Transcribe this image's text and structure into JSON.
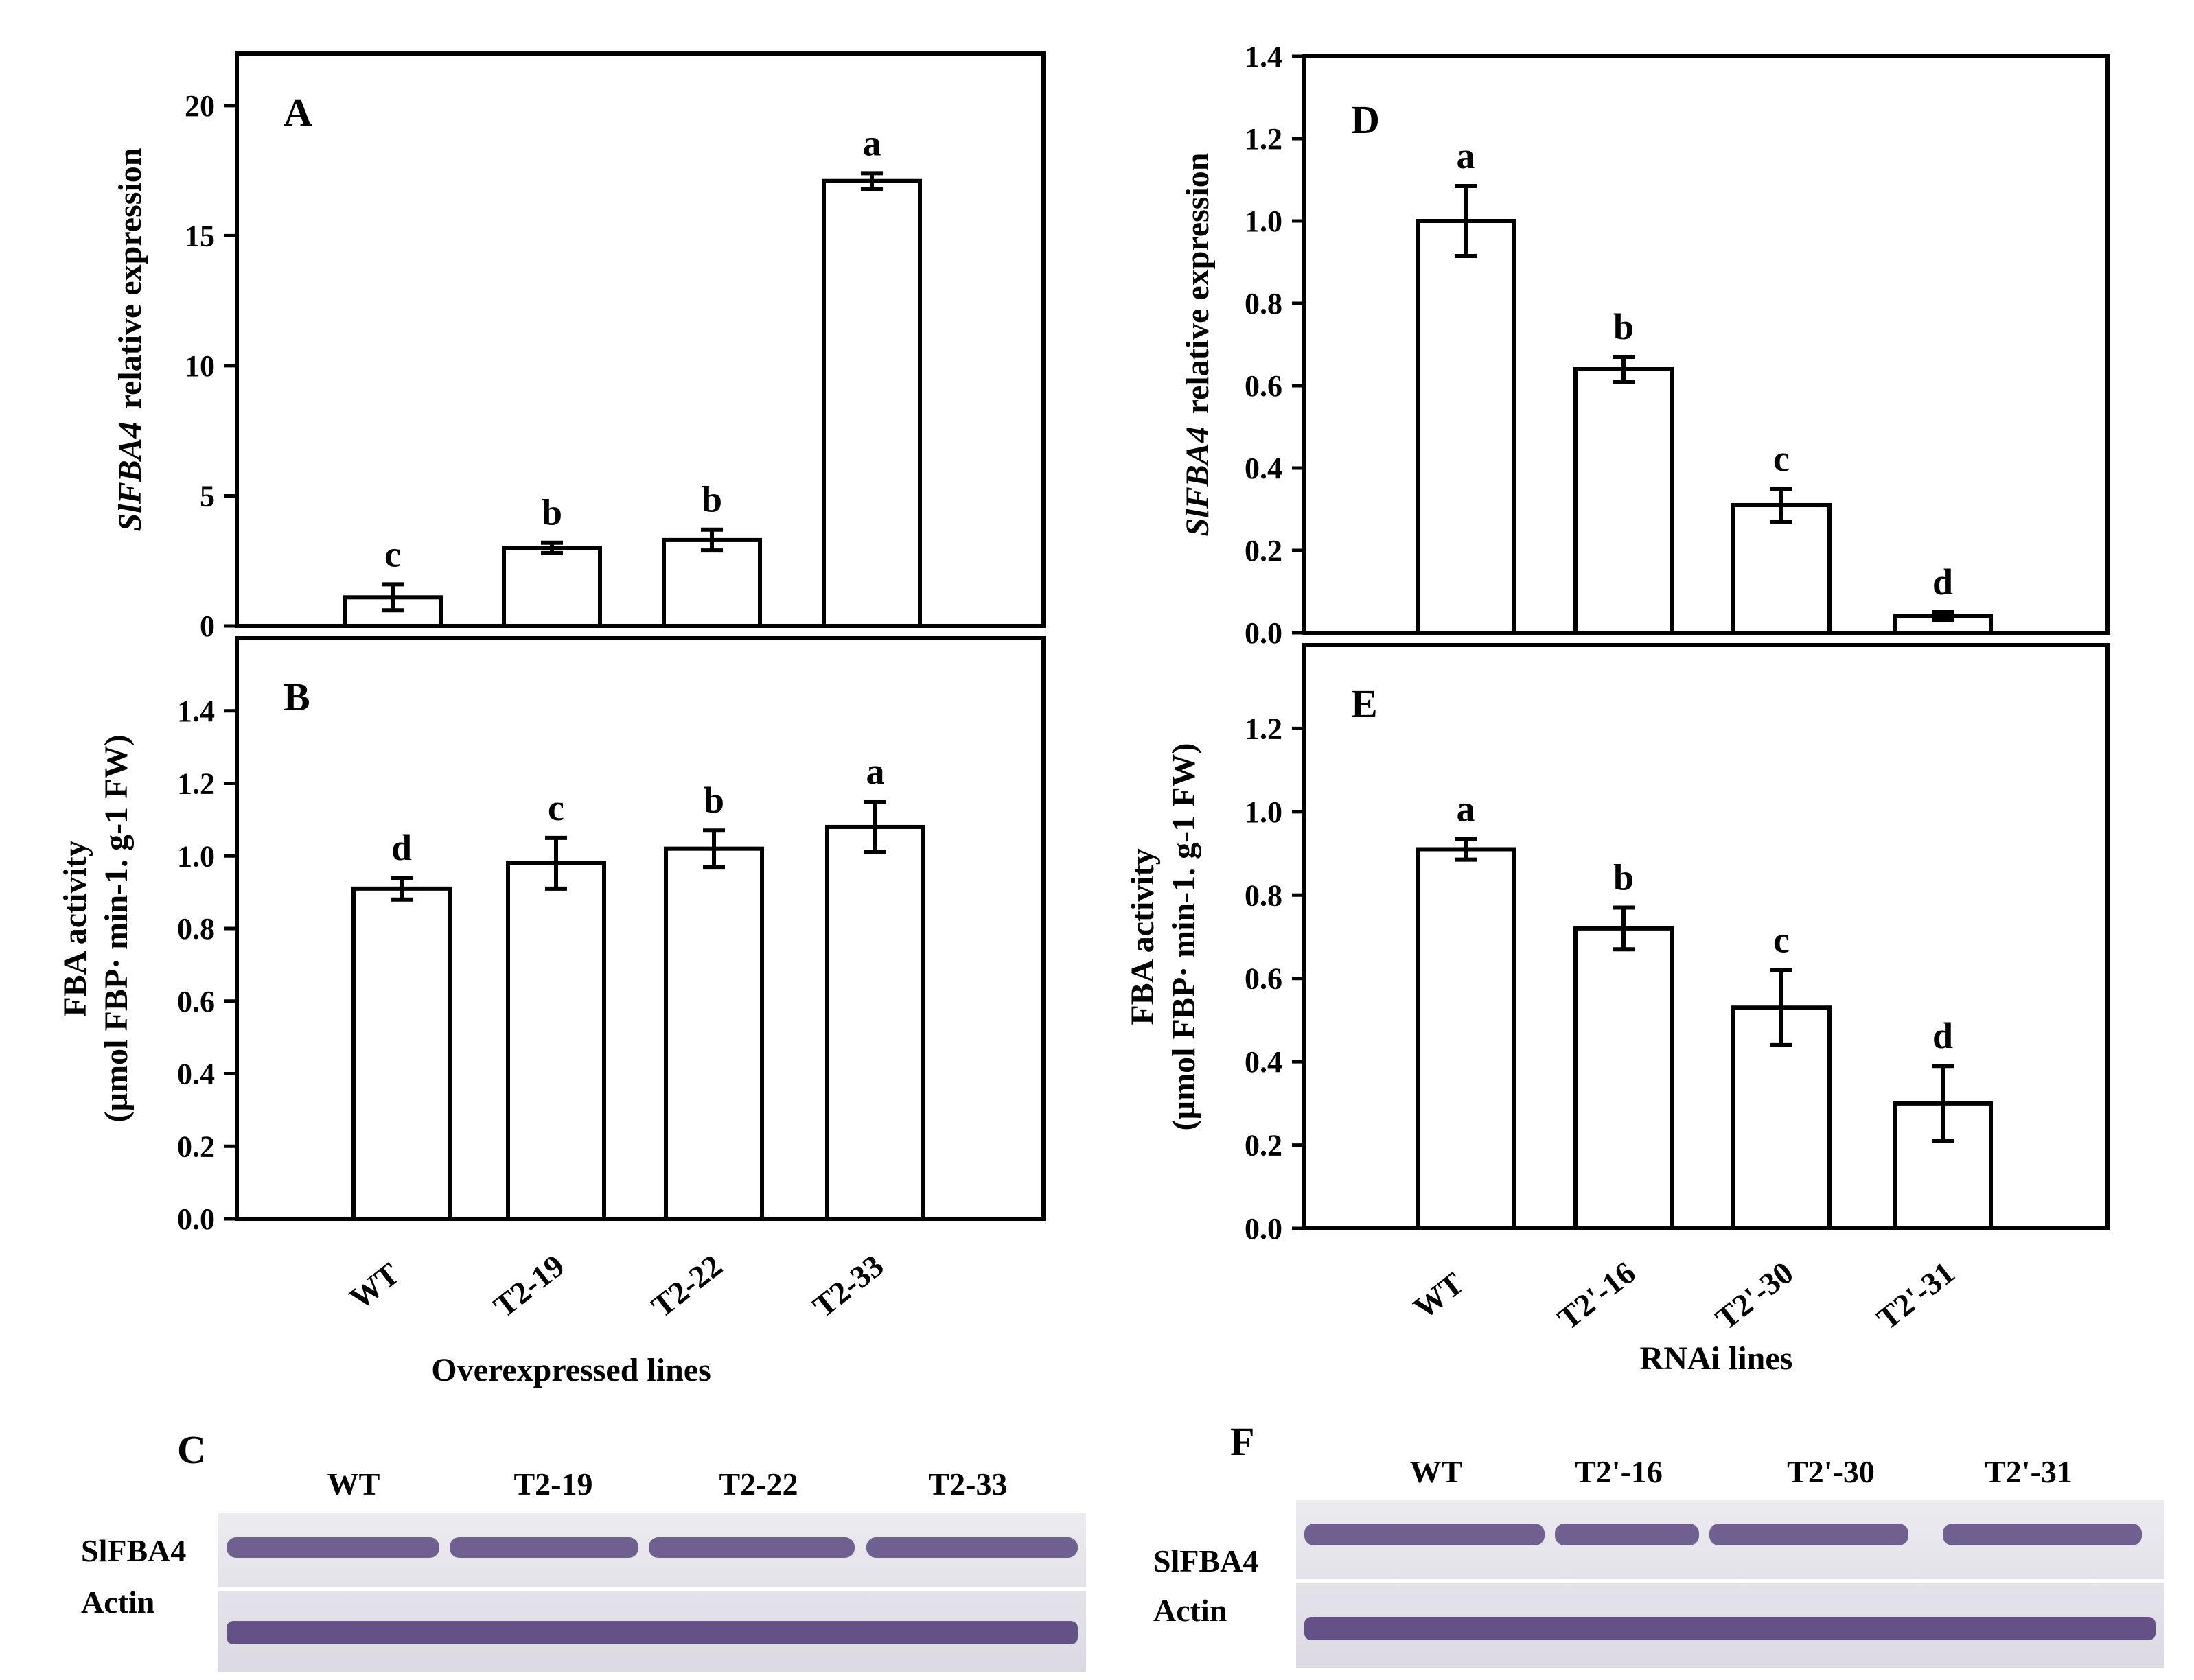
{
  "chart_data": [
    {
      "panel": "A",
      "type": "bar",
      "categories": [
        "WT",
        "T2-19",
        "T2-22",
        "T2-33"
      ],
      "values": [
        1.1,
        3.0,
        3.3,
        17.1
      ],
      "errors": [
        0.5,
        0.2,
        0.4,
        0.3
      ],
      "letters": [
        "c",
        "b",
        "b",
        "a"
      ],
      "ylabel_italic": "SlFBA4",
      "ylabel_rest": "relative expression",
      "ylim": [
        0,
        22
      ],
      "yticks": [
        0,
        5,
        10,
        15,
        20
      ],
      "tick_labels": [
        "0",
        "5",
        "10",
        "15",
        "20"
      ]
    },
    {
      "panel": "B",
      "type": "bar",
      "categories": [
        "WT",
        "T2-19",
        "T2-22",
        "T2-33"
      ],
      "values": [
        0.91,
        0.98,
        1.02,
        1.08
      ],
      "errors": [
        0.03,
        0.07,
        0.05,
        0.07
      ],
      "letters": [
        "d",
        "c",
        "b",
        "a"
      ],
      "ylabel_line1": "FBA activity",
      "ylabel_line2": "(µmol FBP· min-1. g-1 FW)",
      "ylim": [
        0,
        1.6
      ],
      "yticks": [
        0,
        0.2,
        0.4,
        0.6,
        0.8,
        1.0,
        1.2,
        1.4
      ],
      "tick_labels": [
        "0.0",
        "0.2",
        "0.4",
        "0.6",
        "0.8",
        "1.0",
        "1.2",
        "1.4"
      ],
      "xlabel": "Overexpressed lines"
    },
    {
      "panel": "D",
      "type": "bar",
      "categories": [
        "WT",
        "T2'-16",
        "T2'-30",
        "T2'-31"
      ],
      "values": [
        1.0,
        0.64,
        0.31,
        0.04
      ],
      "errors": [
        0.085,
        0.03,
        0.04,
        0.01
      ],
      "letters": [
        "a",
        "b",
        "c",
        "d"
      ],
      "ylabel_italic": "SlFBA4",
      "ylabel_rest": "relative expression",
      "ylim": [
        0,
        1.4
      ],
      "yticks": [
        0,
        0.2,
        0.4,
        0.6,
        0.8,
        1.0,
        1.2,
        1.4
      ],
      "tick_labels": [
        "0.0",
        "0.2",
        "0.4",
        "0.6",
        "0.8",
        "1.0",
        "1.2",
        "1.4"
      ]
    },
    {
      "panel": "E",
      "type": "bar",
      "categories": [
        "WT",
        "T2'-16",
        "T2'-30",
        "T2'-31"
      ],
      "values": [
        0.91,
        0.72,
        0.53,
        0.3
      ],
      "errors": [
        0.025,
        0.05,
        0.09,
        0.09
      ],
      "letters": [
        "a",
        "b",
        "c",
        "d"
      ],
      "ylabel_line1": "FBA activity",
      "ylabel_line2": "(µmol FBP· min-1. g-1 FW)",
      "ylim": [
        0,
        1.4
      ],
      "yticks": [
        0,
        0.2,
        0.4,
        0.6,
        0.8,
        1.0,
        1.2
      ],
      "tick_labels": [
        "0.0",
        "0.2",
        "0.4",
        "0.6",
        "0.8",
        "1.0",
        "1.2"
      ],
      "xlabel": "RNAi lines"
    }
  ],
  "blots": [
    {
      "panel": "C",
      "lanes": [
        "WT",
        "T2-19",
        "T2-22",
        "T2-33"
      ],
      "rows": [
        "SlFBA4",
        "Actin"
      ]
    },
    {
      "panel": "F",
      "lanes": [
        "WT",
        "T2'-16",
        "T2'-30",
        "T2'-31"
      ],
      "rows": [
        "SlFBA4",
        "Actin"
      ]
    }
  ],
  "colors": {
    "ink": "#000000",
    "bar_fill": "#ffffff",
    "blot_bg": "#e4e2ea",
    "band": "#4e3a74"
  }
}
